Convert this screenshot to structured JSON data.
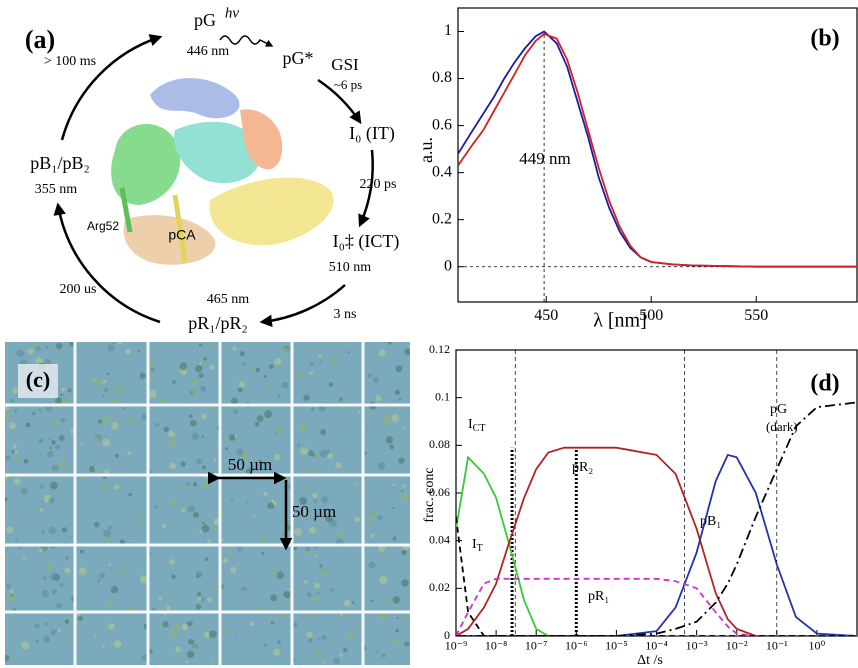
{
  "figure": {
    "a": {
      "texts": [
        "(a)",
        "pG",
        "446 nm",
        "hν",
        "pG*",
        "GSI",
        "~6 ps",
        "I₀ (IT)",
        "220 ps",
        "I₀‡ (ICT)",
        "510 nm",
        "3 ns",
        "465 nm",
        "pR₁/pR₂",
        "200 us",
        "pB₁/pB₂",
        "355 nm",
        "> 100 ms",
        "Arg52",
        "pCA"
      ]
    },
    "c": {
      "panel_label": "(c)",
      "scale_label_h": "50 µm",
      "scale_label_v": "50 µm"
    }
  },
  "chart_data": [
    {
      "type": "line",
      "panel_label": "(b)",
      "xlabel": "λ [nm]",
      "ylabel": "a.u.",
      "annotation": "449 nm",
      "peak_x": 449,
      "x": [
        408,
        415,
        420,
        425,
        430,
        435,
        440,
        445,
        449,
        455,
        460,
        465,
        470,
        475,
        480,
        485,
        490,
        495,
        500,
        510,
        520,
        550,
        598
      ],
      "series": [
        {
          "color": "#1a1aa8",
          "values": [
            0.48,
            0.58,
            0.65,
            0.72,
            0.8,
            0.87,
            0.93,
            0.98,
            1,
            0.95,
            0.85,
            0.7,
            0.55,
            0.38,
            0.25,
            0.15,
            0.08,
            0.04,
            0.02,
            0.01,
            0.005,
            0,
            0
          ]
        },
        {
          "color": "#d42020",
          "values": [
            0.43,
            0.52,
            0.58,
            0.66,
            0.74,
            0.82,
            0.9,
            0.96,
            0.99,
            0.97,
            0.88,
            0.74,
            0.58,
            0.42,
            0.28,
            0.17,
            0.09,
            0.04,
            0.02,
            0.01,
            0.005,
            0,
            0
          ]
        }
      ],
      "xlim": [
        408,
        598
      ],
      "ylim": [
        -0.15,
        1.1
      ],
      "xticks": [
        450,
        500,
        550
      ],
      "yticks": [
        0,
        0.2,
        0.4,
        0.6,
        0.8,
        1
      ]
    },
    {
      "type": "line",
      "panel_label": "(d)",
      "xlabel": "Δt /s",
      "ylabel": "frac. conc",
      "xscale": "log",
      "x": [
        1e-09,
        2e-09,
        5e-09,
        1e-08,
        2e-08,
        5e-08,
        1e-07,
        2e-07,
        5e-07,
        1e-06,
        1e-05,
        0.0001,
        0.0003,
        0.001,
        0.003,
        0.006,
        0.01,
        0.03,
        0.1,
        0.3,
        1,
        10
      ],
      "xlim": [
        1e-09,
        10
      ],
      "ylim": [
        0,
        0.12
      ],
      "xticks": [
        {
          "value": 1e-09,
          "label": "10⁻⁹"
        },
        {
          "value": 1e-08,
          "label": "10⁻⁸"
        },
        {
          "value": 1e-07,
          "label": "10⁻⁷"
        },
        {
          "value": 1e-06,
          "label": "10⁻⁶"
        },
        {
          "value": 1e-05,
          "label": "10⁻⁵"
        },
        {
          "value": 0.0001,
          "label": "10⁻⁴"
        },
        {
          "value": 0.001,
          "label": "10⁻³"
        },
        {
          "value": 0.01,
          "label": "10⁻²"
        },
        {
          "value": 0.1,
          "label": "10⁻¹"
        },
        {
          "value": 1,
          "label": "10⁰"
        }
      ],
      "yticks": [
        0,
        0.02,
        0.04,
        0.06,
        0.08,
        0.1,
        0.12
      ],
      "dashed_vlines": [
        3e-08,
        0.0005,
        0.1
      ],
      "dotted_vlines": [
        2.5e-08,
        1e-06
      ],
      "series": [
        {
          "label": "I",
          "label_sub": "CT",
          "color": "#33cc33",
          "style": "solid",
          "values": [
            0.045,
            0.075,
            0.068,
            0.058,
            0.04,
            0.015,
            0.003,
            0,
            0,
            0,
            0,
            0,
            0,
            0,
            0,
            0,
            0,
            0,
            0,
            0,
            0,
            0
          ]
        },
        {
          "label": "pR₂",
          "color": "#b22222",
          "style": "solid",
          "values": [
            0,
            0.003,
            0.012,
            0.022,
            0.038,
            0.058,
            0.07,
            0.077,
            0.079,
            0.079,
            0.079,
            0.076,
            0.068,
            0.045,
            0.018,
            0.007,
            0.003,
            0,
            0,
            0,
            0,
            0
          ]
        },
        {
          "label": "pB₁",
          "color": "#2233aa",
          "style": "solid",
          "values": [
            0,
            0,
            0,
            0,
            0,
            0,
            0,
            0,
            0,
            0,
            0,
            0.002,
            0.012,
            0.035,
            0.065,
            0.076,
            0.075,
            0.06,
            0.03,
            0.008,
            0.001,
            0
          ]
        },
        {
          "label": "pR₁",
          "color": "#cc33cc",
          "style": "dashed",
          "values": [
            0,
            0.01,
            0.022,
            0.024,
            0.024,
            0.024,
            0.024,
            0.024,
            0.024,
            0.024,
            0.024,
            0.024,
            0.023,
            0.02,
            0.01,
            0.004,
            0.001,
            0,
            0,
            0,
            0,
            0
          ]
        },
        {
          "label": "pG",
          "label_note": "(dark)",
          "color": "#000000",
          "style": "dashdot",
          "values": [
            0,
            0,
            0,
            0,
            0,
            0,
            0,
            0,
            0,
            0,
            0,
            0.001,
            0.003,
            0.006,
            0.014,
            0.022,
            0.03,
            0.05,
            0.07,
            0.088,
            0.096,
            0.098
          ]
        },
        {
          "label": "I",
          "label_sub": "T",
          "color": "#000000",
          "style": "dashed",
          "values": [
            0.05,
            0.01,
            0,
            0,
            0,
            0,
            0,
            0,
            0,
            0,
            0,
            0,
            0,
            0,
            0,
            0,
            0,
            0,
            0,
            0,
            0,
            0
          ]
        }
      ]
    }
  ]
}
